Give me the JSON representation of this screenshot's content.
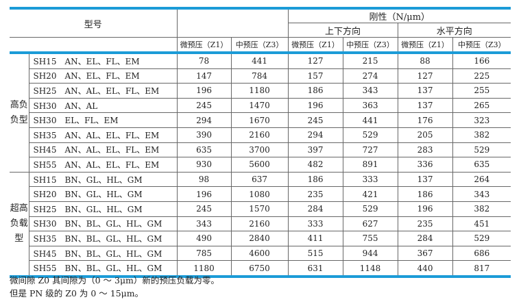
{
  "header": {
    "model": "型号",
    "stiffness": "刚性（N/μm）",
    "vertical": "上下方向",
    "horizontal": "水平方向",
    "sub": [
      "微预压（Z1）",
      "中预压（Z3）",
      "微预压（Z1）",
      "中预压（Z3）",
      "微预压（Z1）",
      "中预压（Z3）"
    ]
  },
  "groups": [
    {
      "label": "高负负型",
      "rows": [
        [
          "SH15　AN、EL、FL、EM",
          "78",
          "441",
          "127",
          "215",
          "88",
          "166"
        ],
        [
          "SH20　AN、EL、FL、EM",
          "147",
          "784",
          "157",
          "274",
          "127",
          "225"
        ],
        [
          "SH25　AN、AL、EL、FL、EM",
          "196",
          "1180",
          "186",
          "343",
          "137",
          "255"
        ],
        [
          "SH30　AN、AL",
          "245",
          "1470",
          "196",
          "363",
          "137",
          "265"
        ],
        [
          "SH30　EL、FL、EM",
          "294",
          "1670",
          "245",
          "441",
          "176",
          "323"
        ],
        [
          "SH35　AN、AL、EL、FL、EM",
          "390",
          "2160",
          "294",
          "529",
          "205",
          "382"
        ],
        [
          "SH45　AN、AL、EL、FL、EM",
          "635",
          "3700",
          "397",
          "727",
          "283",
          "529"
        ],
        [
          "SH55　AN、AL、EL、FL、EM",
          "930",
          "5600",
          "482",
          "891",
          "336",
          "635"
        ]
      ]
    },
    {
      "label": "超高负载型",
      "rows": [
        [
          "SH15　BN、GL、HL、GM",
          "98",
          "637",
          "186",
          "333",
          "137",
          "264"
        ],
        [
          "SH20　BN、GL、HL、GM",
          "196",
          "1080",
          "235",
          "421",
          "186",
          "343"
        ],
        [
          "SH25　BN、GL、HL、GM",
          "245",
          "1570",
          "284",
          "529",
          "196",
          "382"
        ],
        [
          "SH30　BN、BL、GL、HL、GM",
          "343",
          "2160",
          "333",
          "627",
          "235",
          "451"
        ],
        [
          "SH35　BN、BL、GL、HL、GM",
          "490",
          "2840",
          "411",
          "755",
          "284",
          "529"
        ],
        [
          "SH45　BN、BL、GL、HL、GM",
          "785",
          "4600",
          "515",
          "944",
          "367",
          "686"
        ],
        [
          "SH55　BN、BL、GL、HL、GM",
          "1180",
          "6750",
          "631",
          "1148",
          "440",
          "817"
        ]
      ]
    }
  ],
  "notes": [
    "微间隙 Z0 其间隙为（0 ～ 3μm）新的预压负载为零。",
    "但是 PN 级的 Z0 为 0 ～ 15μm。"
  ],
  "colors": {
    "accent": "#1b9bd7"
  }
}
